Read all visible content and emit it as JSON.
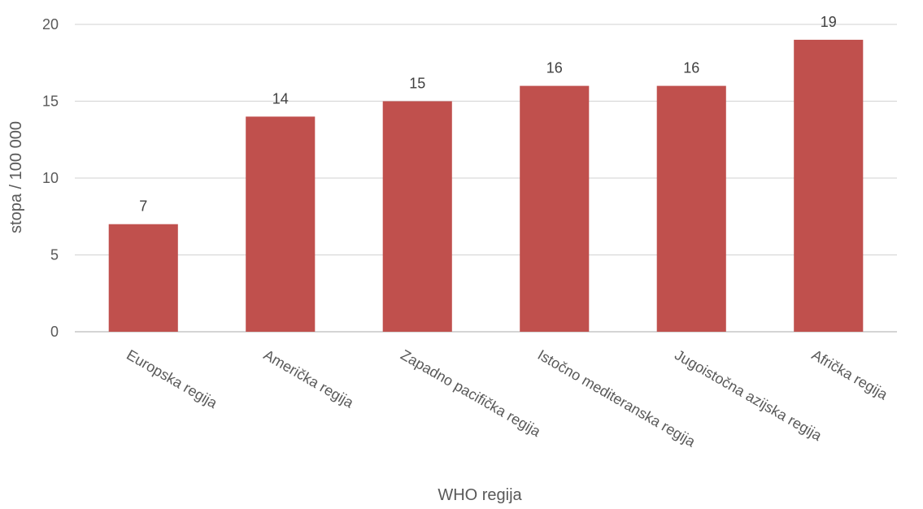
{
  "chart_data": {
    "type": "bar",
    "title": "",
    "xlabel": "WHO regija",
    "ylabel": "stopa / 100 000",
    "categories": [
      "Europska regija",
      "Američka regija",
      "Zapadno pacifička regija",
      "Istočno mediteranska regija",
      "Jugoistočna azijska regija",
      "Afrička regija"
    ],
    "values": [
      7,
      14,
      15,
      16,
      16,
      19
    ],
    "data_labels": [
      "7",
      "14",
      "15",
      "16",
      "16",
      "19"
    ],
    "ylim": [
      0,
      20
    ],
    "yticks": [
      "0",
      "5",
      "10",
      "15",
      "20"
    ],
    "grid": true,
    "legend": "none",
    "colors": {
      "bar": "#c0504d",
      "grid": "#d9d9d9",
      "text": "#595959"
    }
  }
}
